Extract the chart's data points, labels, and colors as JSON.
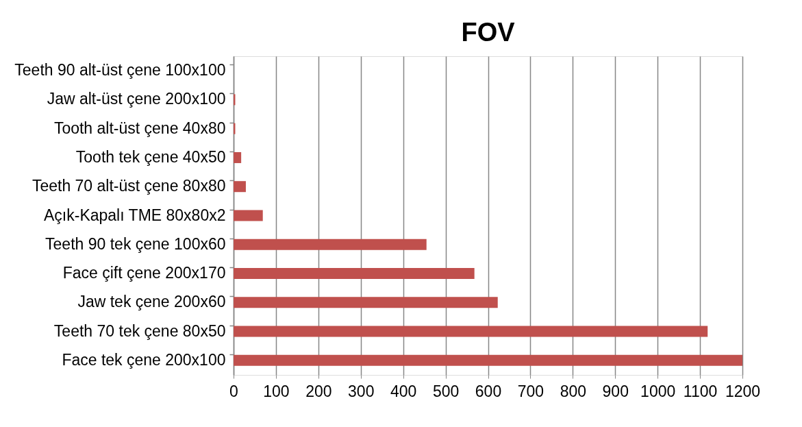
{
  "chart_data": {
    "type": "bar",
    "orientation": "horizontal",
    "title": "FOV",
    "categories": [
      "Teeth 90 alt-üst çene 100x100",
      "Jaw alt-üst çene 200x100",
      "Tooth alt-üst çene 40x80",
      "Tooth tek çene 40x50",
      "Teeth 70 alt-üst çene 80x80",
      "Açık-Kapalı TME 80x80x2",
      "Teeth 90 tek çene 100x60",
      "Face çift çene 200x170",
      "Jaw tek çene 200x60",
      "Teeth 70 tek çene 80x50",
      "Face tek çene 200x100"
    ],
    "values": [
      0,
      4,
      4,
      18,
      29,
      69,
      455,
      568,
      623,
      1118,
      1200
    ],
    "color": "#c0504d",
    "xlim": [
      0,
      1200
    ],
    "xticks": [
      0,
      100,
      200,
      300,
      400,
      500,
      600,
      700,
      800,
      900,
      1000,
      1100,
      1200
    ],
    "grid": "x"
  }
}
